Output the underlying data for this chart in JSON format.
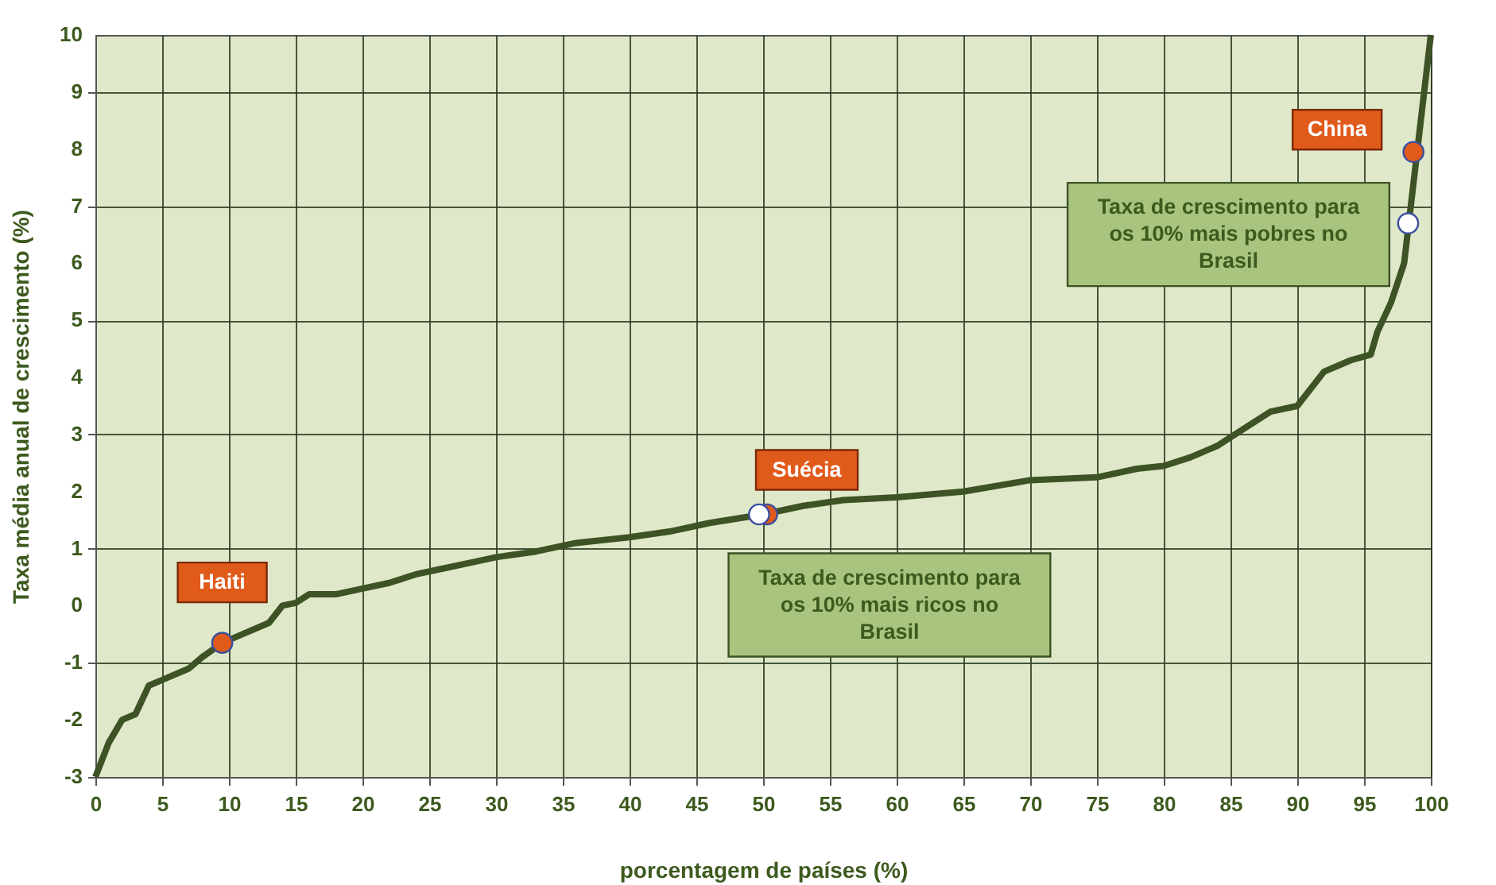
{
  "chart_data": {
    "type": "line",
    "xlabel": "porcentagem de países (%)",
    "ylabel": "Taxa média anual de crescimento (%)",
    "xlim": [
      0,
      100
    ],
    "ylim": [
      -3,
      10
    ],
    "xticks": [
      0,
      5,
      10,
      15,
      20,
      25,
      30,
      35,
      40,
      45,
      50,
      55,
      60,
      65,
      70,
      75,
      80,
      85,
      90,
      95,
      100
    ],
    "yticks": [
      -3,
      -2,
      -1,
      0,
      1,
      2,
      3,
      4,
      5,
      6,
      7,
      8,
      9,
      10
    ],
    "grid": true,
    "series": [
      {
        "color": "#3d5225",
        "x": [
          0,
          1,
          2,
          3,
          4,
          5,
          7,
          8,
          9.5,
          11,
          13,
          14,
          15,
          16,
          18,
          20,
          22,
          24,
          26,
          28,
          30,
          33,
          36,
          40,
          43,
          46,
          50,
          53,
          56,
          60,
          65,
          70,
          75,
          78,
          80,
          82,
          84,
          86,
          88,
          90,
          91,
          92,
          94,
          95.5,
          96,
          97,
          98,
          98.5,
          99,
          99.5,
          100
        ],
        "values": [
          -3,
          -2.4,
          -2.0,
          -1.9,
          -1.4,
          -1.3,
          -1.1,
          -0.9,
          -0.65,
          -0.5,
          -0.3,
          0,
          0.05,
          0.2,
          0.2,
          0.3,
          0.4,
          0.55,
          0.65,
          0.75,
          0.85,
          0.95,
          1.1,
          1.2,
          1.3,
          1.45,
          1.6,
          1.75,
          1.85,
          1.9,
          2.0,
          2.2,
          2.25,
          2.4,
          2.45,
          2.6,
          2.8,
          3.1,
          3.4,
          3.5,
          3.8,
          4.1,
          4.3,
          4.4,
          4.8,
          5.3,
          6.0,
          7.0,
          8.0,
          9.0,
          10
        ]
      },
      {
        "type": "scatter",
        "color": "#e05a1a",
        "x": [
          9.5,
          50.3,
          98.7
        ],
        "values": [
          -0.65,
          1.6,
          7.95
        ]
      },
      {
        "type": "scatter",
        "color": "#ffffff",
        "x": [
          49.7,
          98.3
        ],
        "values": [
          1.6,
          6.7
        ]
      }
    ],
    "annotations": [
      {
        "text": "Haiti",
        "x": 9.5,
        "y": -0.65
      },
      {
        "text": "Suécia",
        "x": 50.3,
        "y": 1.6
      },
      {
        "text": "China",
        "x": 98.7,
        "y": 7.95
      },
      {
        "text": "Taxa de crescimento para os 10% mais ricos no Brasil",
        "x": 49.7,
        "y": 1.6
      },
      {
        "text": "Taxa de crescimento para os 10% mais pobres no Brasil",
        "x": 98.3,
        "y": 6.7
      }
    ]
  }
}
